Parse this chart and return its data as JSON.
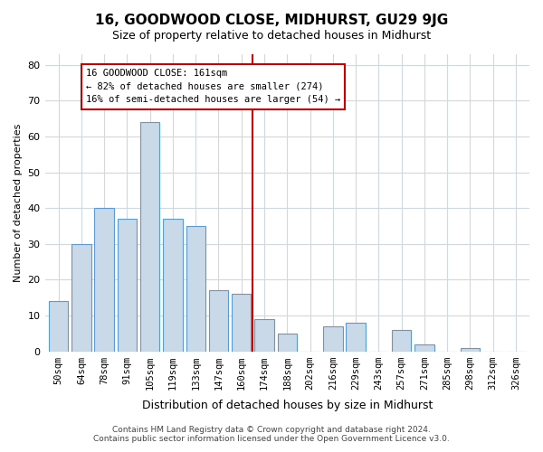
{
  "title": "16, GOODWOOD CLOSE, MIDHURST, GU29 9JG",
  "subtitle": "Size of property relative to detached houses in Midhurst",
  "xlabel": "Distribution of detached houses by size in Midhurst",
  "ylabel": "Number of detached properties",
  "bar_labels": [
    "50sqm",
    "64sqm",
    "78sqm",
    "91sqm",
    "105sqm",
    "119sqm",
    "133sqm",
    "147sqm",
    "160sqm",
    "174sqm",
    "188sqm",
    "202sqm",
    "216sqm",
    "229sqm",
    "243sqm",
    "257sqm",
    "271sqm",
    "285sqm",
    "298sqm",
    "312sqm",
    "326sqm"
  ],
  "bar_values": [
    14,
    30,
    40,
    37,
    64,
    37,
    35,
    17,
    16,
    9,
    5,
    0,
    7,
    8,
    0,
    6,
    2,
    0,
    1,
    0,
    0
  ],
  "bar_color": "#c9d9e8",
  "bar_edge_color": "#5b9bd5",
  "vline_x": 8.5,
  "vline_color": "#cc0000",
  "ylim": [
    0,
    83
  ],
  "yticks": [
    0,
    10,
    20,
    30,
    40,
    50,
    60,
    70,
    80
  ],
  "annotation_title": "16 GOODWOOD CLOSE: 161sqm",
  "annotation_line1": "← 82% of detached houses are smaller (274)",
  "annotation_line2": "16% of semi-detached houses are larger (54) →",
  "annotation_box_color": "#ffffff",
  "annotation_box_edge": "#cc0000",
  "footer_line1": "Contains HM Land Registry data © Crown copyright and database right 2024.",
  "footer_line2": "Contains public sector information licensed under the Open Government Licence v3.0.",
  "background_color": "#ffffff",
  "grid_color": "#d0d8e0"
}
